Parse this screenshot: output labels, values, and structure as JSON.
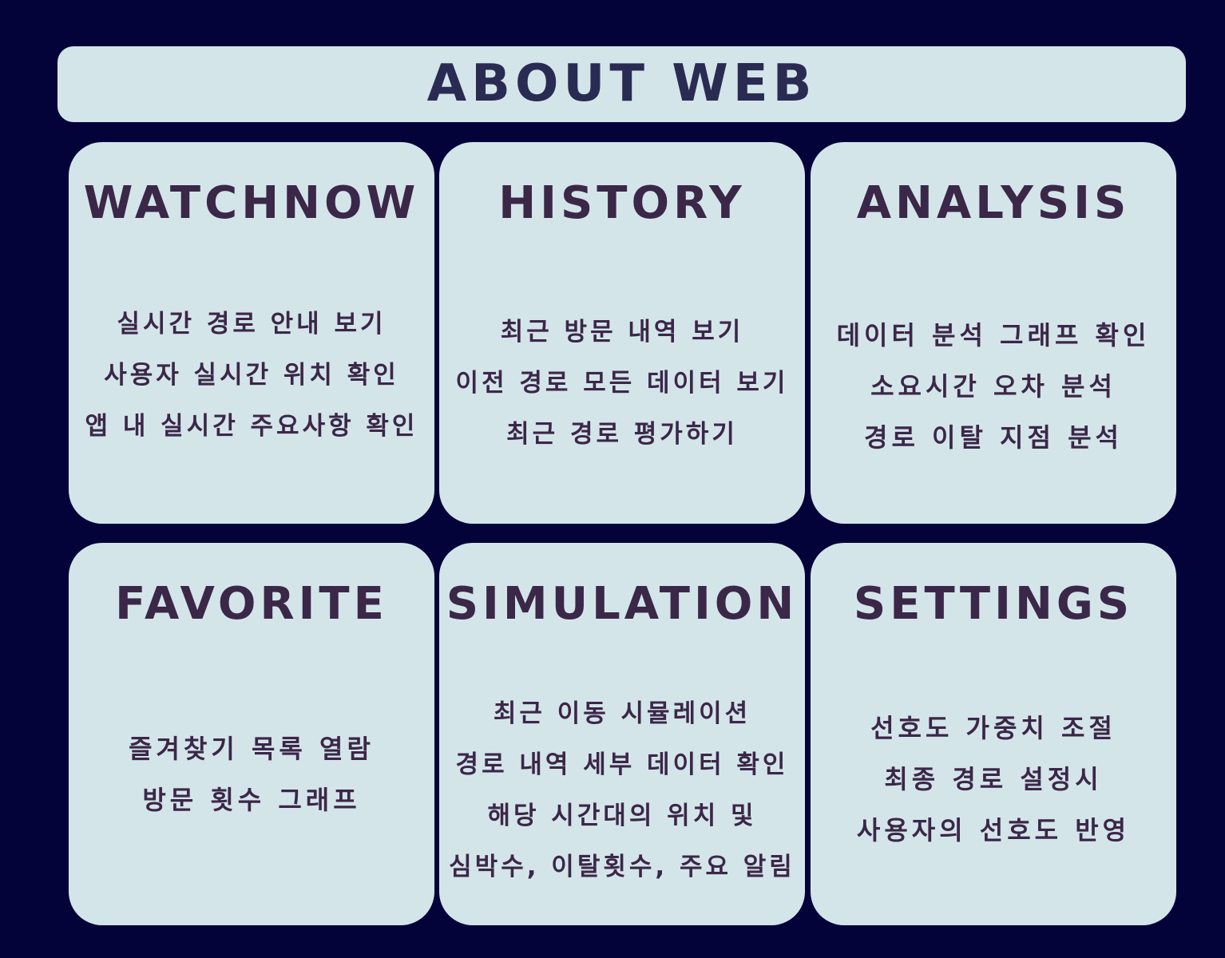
{
  "header": {
    "title": "ABOUT WEB"
  },
  "cards": [
    {
      "title": "WATCHNOW",
      "lines": [
        "실시간 경로 안내 보기",
        "사용자 실시간 위치 확인",
        "앱 내 실시간 주요사항 확인"
      ]
    },
    {
      "title": "HISTORY",
      "lines": [
        "최근 방문 내역 보기",
        "이전 경로 모든 데이터 보기",
        "최근 경로 평가하기"
      ]
    },
    {
      "title": "ANALYSIS",
      "lines": [
        "데이터 분석 그래프 확인",
        "소요시간 오차 분석",
        "경로 이탈 지점 분석"
      ]
    },
    {
      "title": "FAVORITE",
      "lines": [
        "즐겨찾기 목록 열람",
        "방문 횟수 그래프"
      ]
    },
    {
      "title": "SIMULATION",
      "lines": [
        "최근 이동 시뮬레이션",
        "경로 내역 세부 데이터 확인",
        "해당 시간대의 위치 및",
        "심박수, 이탈횟수, 주요 알림"
      ]
    },
    {
      "title": "SETTINGS",
      "lines": [
        "선호도 가중치 조절",
        "최종 경로 설정시",
        "사용자의 선호도 반영"
      ]
    }
  ],
  "colors": {
    "background": "#03033a",
    "panel": "#d4e5ea",
    "header_text": "#2a2b52",
    "card_text": "#3b2748"
  }
}
